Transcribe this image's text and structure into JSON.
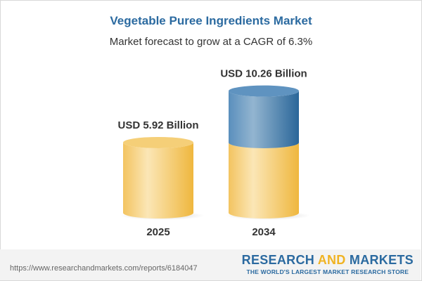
{
  "header": {
    "title": "Vegetable Puree Ingredients Market",
    "subtitle": "Market forecast to grow at a CAGR of 6.3%"
  },
  "chart_data": {
    "type": "bar",
    "style": "3d-cylinder",
    "categories": [
      "2025",
      "2034"
    ],
    "values": [
      5.92,
      10.26
    ],
    "data_labels": [
      "USD 5.92 Billion",
      "USD 10.26 Billion"
    ],
    "colors": {
      "base": "#f0c050",
      "growth": "#3f78aa"
    },
    "ylim": [
      0,
      10.26
    ],
    "grid": false
  },
  "footer": {
    "url": "https://www.researchandmarkets.com/reports/6184047",
    "logo_part1": "RESEARCH ",
    "logo_part2": "AND",
    "logo_part3": " MARKETS",
    "tagline": "THE WORLD'S LARGEST MARKET RESEARCH STORE"
  }
}
